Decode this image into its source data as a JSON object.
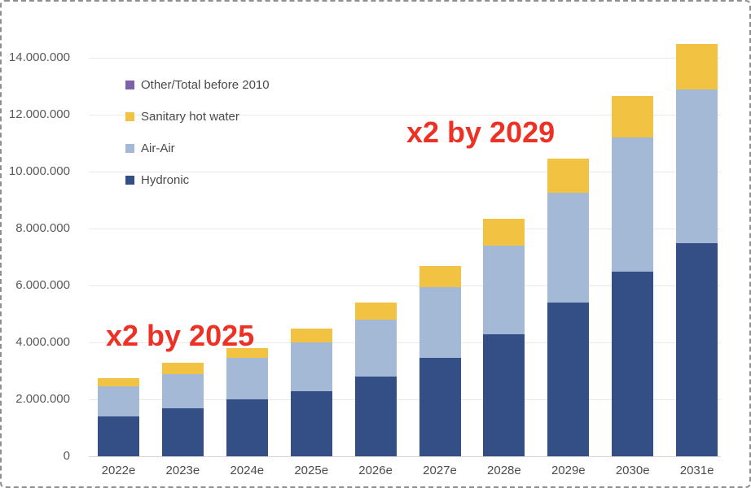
{
  "chart_data": {
    "type": "bar",
    "stacked": true,
    "title": "",
    "xlabel": "",
    "ylabel": "",
    "categories": [
      "2022e",
      "2023e",
      "2024e",
      "2025e",
      "2026e",
      "2027e",
      "2028e",
      "2029e",
      "2030e",
      "2031e"
    ],
    "series": [
      {
        "name": "Hydronic",
        "color": "#344E86",
        "values": [
          1400000,
          1700000,
          2000000,
          2300000,
          2800000,
          3450000,
          4300000,
          5400000,
          6500000,
          7500000
        ]
      },
      {
        "name": "Air-Air",
        "color": "#A4B9D6",
        "values": [
          1050000,
          1200000,
          1450000,
          1700000,
          2000000,
          2500000,
          3100000,
          3850000,
          4700000,
          5400000
        ]
      },
      {
        "name": "Sanitary hot water",
        "color": "#F2C243",
        "values": [
          300000,
          400000,
          350000,
          500000,
          600000,
          750000,
          950000,
          1200000,
          1450000,
          1600000
        ]
      },
      {
        "name": "Other/Total before 2010",
        "color": "#7C63A9",
        "values": [
          0,
          0,
          0,
          0,
          0,
          0,
          0,
          0,
          0,
          0
        ]
      }
    ],
    "totals": [
      2750000,
      3300000,
      3800000,
      4500000,
      5400000,
      6700000,
      8350000,
      10450000,
      12650000,
      14500000
    ],
    "y_axis": {
      "min": 0,
      "max": 14000000,
      "tick_step": 2000000,
      "tick_values": [
        0,
        2000000,
        4000000,
        6000000,
        8000000,
        10000000,
        12000000,
        14000000
      ],
      "tick_labels": [
        "0",
        "2.000.000",
        "4.000.000",
        "6.000.000",
        "8.000.000",
        "10.000.000",
        "12.000.000",
        "14.000.000"
      ]
    },
    "grid": true,
    "legend": {
      "position": "inside-top-left",
      "items": [
        "Other/Total before 2010",
        "Sanitary hot water",
        "Air-Air",
        "Hydronic"
      ]
    },
    "annotations": [
      {
        "text": "x2 by 2025",
        "color": "#ED3125"
      },
      {
        "text": "x2 by 2029",
        "color": "#ED3125"
      }
    ]
  },
  "colors": {
    "hydronic": "#344E86",
    "air_air": "#A4B9D6",
    "sanitary_hot_water": "#F2C243",
    "other": "#7C63A9",
    "annotation_red": "#ED3125",
    "tick_text": "#595959",
    "gridline": "#E9E9E9"
  }
}
